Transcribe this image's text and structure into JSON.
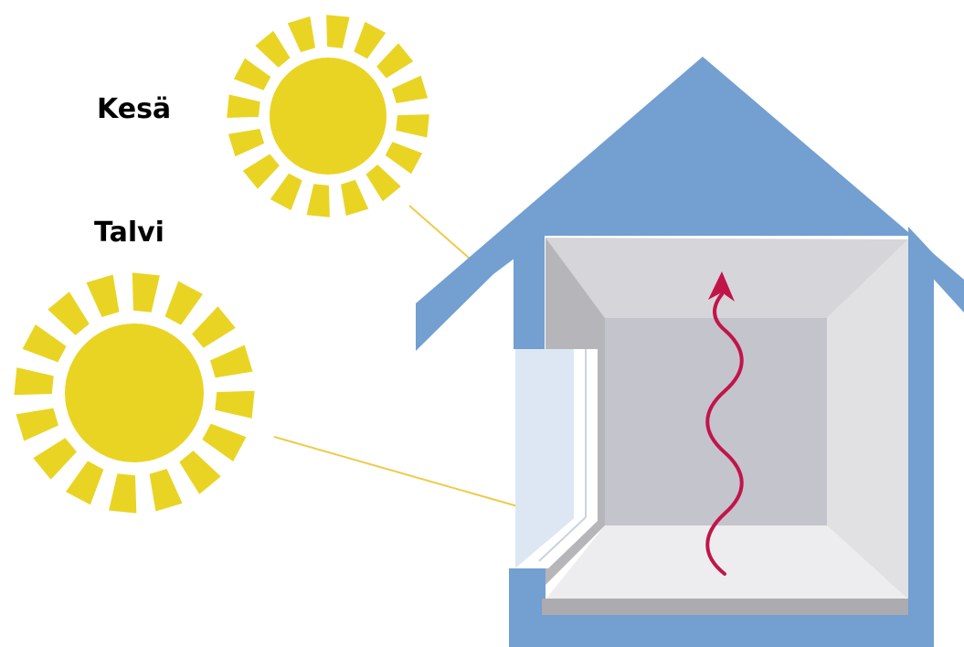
{
  "labels": {
    "summer": "Kesä",
    "winter": "Talvi"
  },
  "colors": {
    "sun": "#E9D423",
    "house": "#739FD1",
    "sun_ray_line": "#EDCB4A",
    "heat_arrow": "#C1154A",
    "ceiling": "#D6D6DA",
    "back_wall": "#C4C4CC",
    "left_wall": "#B5B5BA",
    "right_wall": "#E1E1E3",
    "floor": "#EDEDEF",
    "floor_edge": "#ABABB0",
    "window_glass": "#DCE7F3"
  },
  "icons": {
    "summer_sun": "sun-icon",
    "winter_sun": "sun-icon",
    "heat": "wavy-arrow-up-icon"
  }
}
